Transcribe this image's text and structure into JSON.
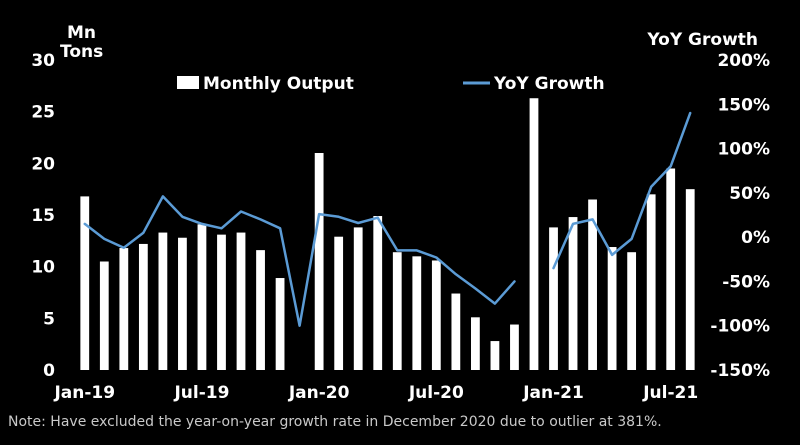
{
  "chart_data": {
    "type": "bar",
    "y_axis_left_label_line1": "Mn",
    "y_axis_left_label_line2": "Tons",
    "y_axis_right_label": "YoY Growth",
    "y_left_lim": [
      0,
      30
    ],
    "y_left_ticks": [
      "0",
      "5",
      "10",
      "15",
      "20",
      "25",
      "30"
    ],
    "y_right_lim": [
      -150,
      200
    ],
    "y_right_ticks": [
      "-150%",
      "-100%",
      "-50%",
      "0%",
      "50%",
      "100%",
      "150%",
      "200%"
    ],
    "x_tick_labels": [
      "Jan-19",
      "Jul-19",
      "Jan-20",
      "Jul-20",
      "Jan-21",
      "Jul-21"
    ],
    "x_tick_indices": [
      0,
      6,
      12,
      18,
      24,
      30
    ],
    "legend_position": "top-center",
    "grid": false,
    "colors": {
      "background": "#000000",
      "bars": "#ffffff",
      "line": "#5b9bd5",
      "text": "#ffffff",
      "note": "#c9c9c9"
    },
    "series": [
      {
        "name": "Monthly Output",
        "type": "bar",
        "axis": "left",
        "values": [
          16.8,
          10.5,
          11.8,
          12.2,
          13.3,
          12.8,
          14.1,
          13.1,
          13.3,
          11.6,
          8.9,
          null,
          21.0,
          12.9,
          13.8,
          14.9,
          11.4,
          11.0,
          10.6,
          7.4,
          5.1,
          2.8,
          4.4,
          26.3,
          13.8,
          14.8,
          16.5,
          11.9,
          11.4,
          17.0,
          19.5,
          17.5
        ]
      },
      {
        "name": "YoY Growth",
        "type": "line",
        "axis": "right",
        "values": [
          15,
          -2,
          -12,
          5,
          46,
          23,
          15,
          10,
          29,
          20,
          10,
          -100,
          26,
          23,
          16,
          22,
          -15,
          -15,
          -23,
          -42,
          -58,
          -75,
          -50,
          null,
          -35,
          15,
          20,
          -20,
          -2,
          57,
          80,
          140
        ]
      }
    ]
  },
  "note": "Note: Have excluded the year-on-year growth rate in December 2020 due to outlier at 381%."
}
